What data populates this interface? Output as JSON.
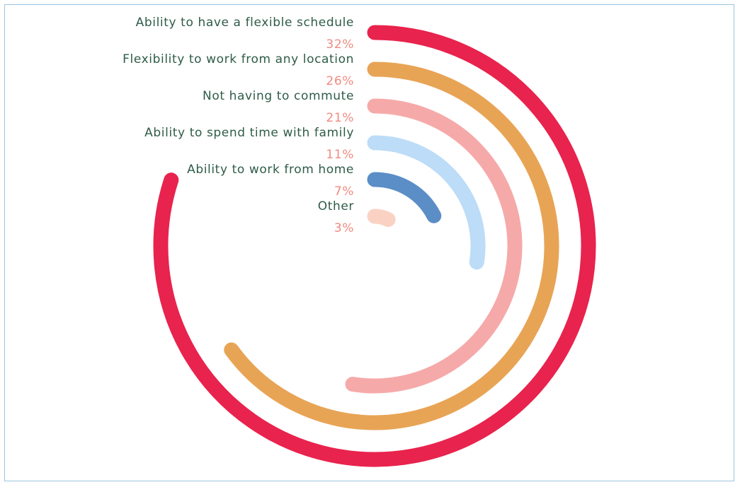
{
  "chart_data": {
    "type": "radial-bar",
    "title": "",
    "categories": [
      "Ability to have a flexible schedule",
      "Flexibility to work from any location",
      "Not having to commute",
      "Ability to spend time with family",
      "Ability to work from home",
      "Other"
    ],
    "values": [
      32,
      26,
      21,
      11,
      7,
      3
    ],
    "value_labels": [
      "32%",
      "26%",
      "21%",
      "11%",
      "7%",
      "3%"
    ],
    "max_value": 40,
    "colors": [
      "#e8234d",
      "#e8a455",
      "#f6a9a9",
      "#bcdcf7",
      "#5b8ec6",
      "#fad2c4"
    ],
    "label_color": "#2f5c48",
    "value_label_color": "#f08a80",
    "legend": "none",
    "grid": false
  }
}
